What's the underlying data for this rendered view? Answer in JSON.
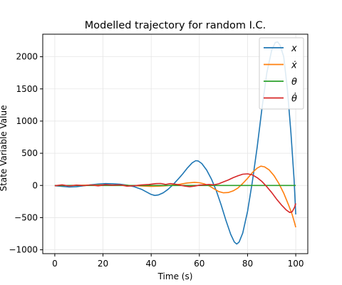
{
  "chart_data": {
    "type": "line",
    "title": "Modelled trajectory for random I.C.",
    "xlabel": "Time (s)",
    "ylabel": "State Variable Value",
    "xlim": [
      -5,
      105
    ],
    "ylim": [
      -1060,
      2350
    ],
    "xticks": [
      0,
      20,
      40,
      60,
      80,
      100
    ],
    "yticks": [
      -1000,
      -500,
      0,
      500,
      1000,
      1500,
      2000
    ],
    "grid": true,
    "legend_position": "top-right",
    "series": [
      {
        "name": "x",
        "legend_label": "x",
        "color": "#1f77b4",
        "points": [
          [
            0,
            -5
          ],
          [
            3,
            -15
          ],
          [
            6,
            -25
          ],
          [
            9,
            -20
          ],
          [
            12,
            -5
          ],
          [
            15,
            10
          ],
          [
            18,
            22
          ],
          [
            21,
            28
          ],
          [
            24,
            26
          ],
          [
            27,
            18
          ],
          [
            30,
            5
          ],
          [
            33,
            -20
          ],
          [
            36,
            -60
          ],
          [
            38,
            -100
          ],
          [
            40,
            -140
          ],
          [
            41.5,
            -155
          ],
          [
            43,
            -148
          ],
          [
            45,
            -115
          ],
          [
            47,
            -60
          ],
          [
            49,
            10
          ],
          [
            51,
            90
          ],
          [
            53,
            175
          ],
          [
            55,
            270
          ],
          [
            57,
            350
          ],
          [
            58.5,
            385
          ],
          [
            59.5,
            380
          ],
          [
            61,
            340
          ],
          [
            63,
            240
          ],
          [
            65,
            100
          ],
          [
            67,
            -80
          ],
          [
            69,
            -300
          ],
          [
            71,
            -540
          ],
          [
            73,
            -760
          ],
          [
            74.5,
            -880
          ],
          [
            75.5,
            -910
          ],
          [
            76.5,
            -880
          ],
          [
            78,
            -740
          ],
          [
            80,
            -400
          ],
          [
            82,
            60
          ],
          [
            84,
            600
          ],
          [
            86,
            1200
          ],
          [
            88,
            1750
          ],
          [
            90,
            2100
          ],
          [
            91.5,
            2220
          ],
          [
            92.5,
            2230
          ],
          [
            93.5,
            2180
          ],
          [
            95,
            2000
          ],
          [
            96.5,
            1500
          ],
          [
            98,
            820
          ],
          [
            99.3,
            100
          ],
          [
            100,
            -450
          ]
        ]
      },
      {
        "name": "xdot",
        "legend_label": "ẋ",
        "color": "#ff7f0e",
        "points": [
          [
            0,
            0
          ],
          [
            5,
            0
          ],
          [
            10,
            3
          ],
          [
            15,
            5
          ],
          [
            20,
            8
          ],
          [
            25,
            6
          ],
          [
            30,
            2
          ],
          [
            35,
            -8
          ],
          [
            40,
            -15
          ],
          [
            43,
            -12
          ],
          [
            46,
            -5
          ],
          [
            49,
            5
          ],
          [
            52,
            20
          ],
          [
            55,
            38
          ],
          [
            58,
            48
          ],
          [
            60,
            42
          ],
          [
            62,
            25
          ],
          [
            64,
            -5
          ],
          [
            66,
            -50
          ],
          [
            68,
            -95
          ],
          [
            70,
            -115
          ],
          [
            72,
            -110
          ],
          [
            74,
            -85
          ],
          [
            76,
            -40
          ],
          [
            78,
            30
          ],
          [
            80,
            110
          ],
          [
            82,
            200
          ],
          [
            84,
            270
          ],
          [
            85.5,
            300
          ],
          [
            87,
            290
          ],
          [
            89,
            240
          ],
          [
            91,
            150
          ],
          [
            93,
            30
          ],
          [
            95,
            -120
          ],
          [
            97,
            -300
          ],
          [
            98.5,
            -450
          ],
          [
            99.5,
            -580
          ],
          [
            100,
            -650
          ]
        ]
      },
      {
        "name": "theta",
        "legend_label": "θ",
        "color": "#2ca02c",
        "points": [
          [
            0,
            0
          ],
          [
            100,
            0
          ]
        ]
      },
      {
        "name": "thetadot",
        "legend_label": "θ̇",
        "color": "#d62728",
        "points": [
          [
            0,
            -5
          ],
          [
            3,
            10
          ],
          [
            6,
            -8
          ],
          [
            9,
            5
          ],
          [
            12,
            -3
          ],
          [
            15,
            8
          ],
          [
            18,
            -6
          ],
          [
            21,
            12
          ],
          [
            24,
            4
          ],
          [
            27,
            10
          ],
          [
            30,
            -12
          ],
          [
            33,
            -5
          ],
          [
            36,
            8
          ],
          [
            39,
            15
          ],
          [
            42,
            28
          ],
          [
            44,
            30
          ],
          [
            46,
            15
          ],
          [
            48,
            28
          ],
          [
            50,
            18
          ],
          [
            52,
            5
          ],
          [
            54,
            -10
          ],
          [
            56,
            -20
          ],
          [
            58,
            -10
          ],
          [
            60,
            5
          ],
          [
            62,
            10
          ],
          [
            64,
            15
          ],
          [
            66,
            10
          ],
          [
            68,
            25
          ],
          [
            70,
            55
          ],
          [
            72,
            85
          ],
          [
            74,
            120
          ],
          [
            76,
            150
          ],
          [
            78,
            175
          ],
          [
            80,
            180
          ],
          [
            82,
            165
          ],
          [
            84,
            120
          ],
          [
            86,
            60
          ],
          [
            88,
            -20
          ],
          [
            90,
            -110
          ],
          [
            92,
            -210
          ],
          [
            94,
            -300
          ],
          [
            96,
            -380
          ],
          [
            97.5,
            -420
          ],
          [
            98.5,
            -410
          ],
          [
            99.5,
            -340
          ],
          [
            100,
            -280
          ]
        ]
      }
    ]
  }
}
